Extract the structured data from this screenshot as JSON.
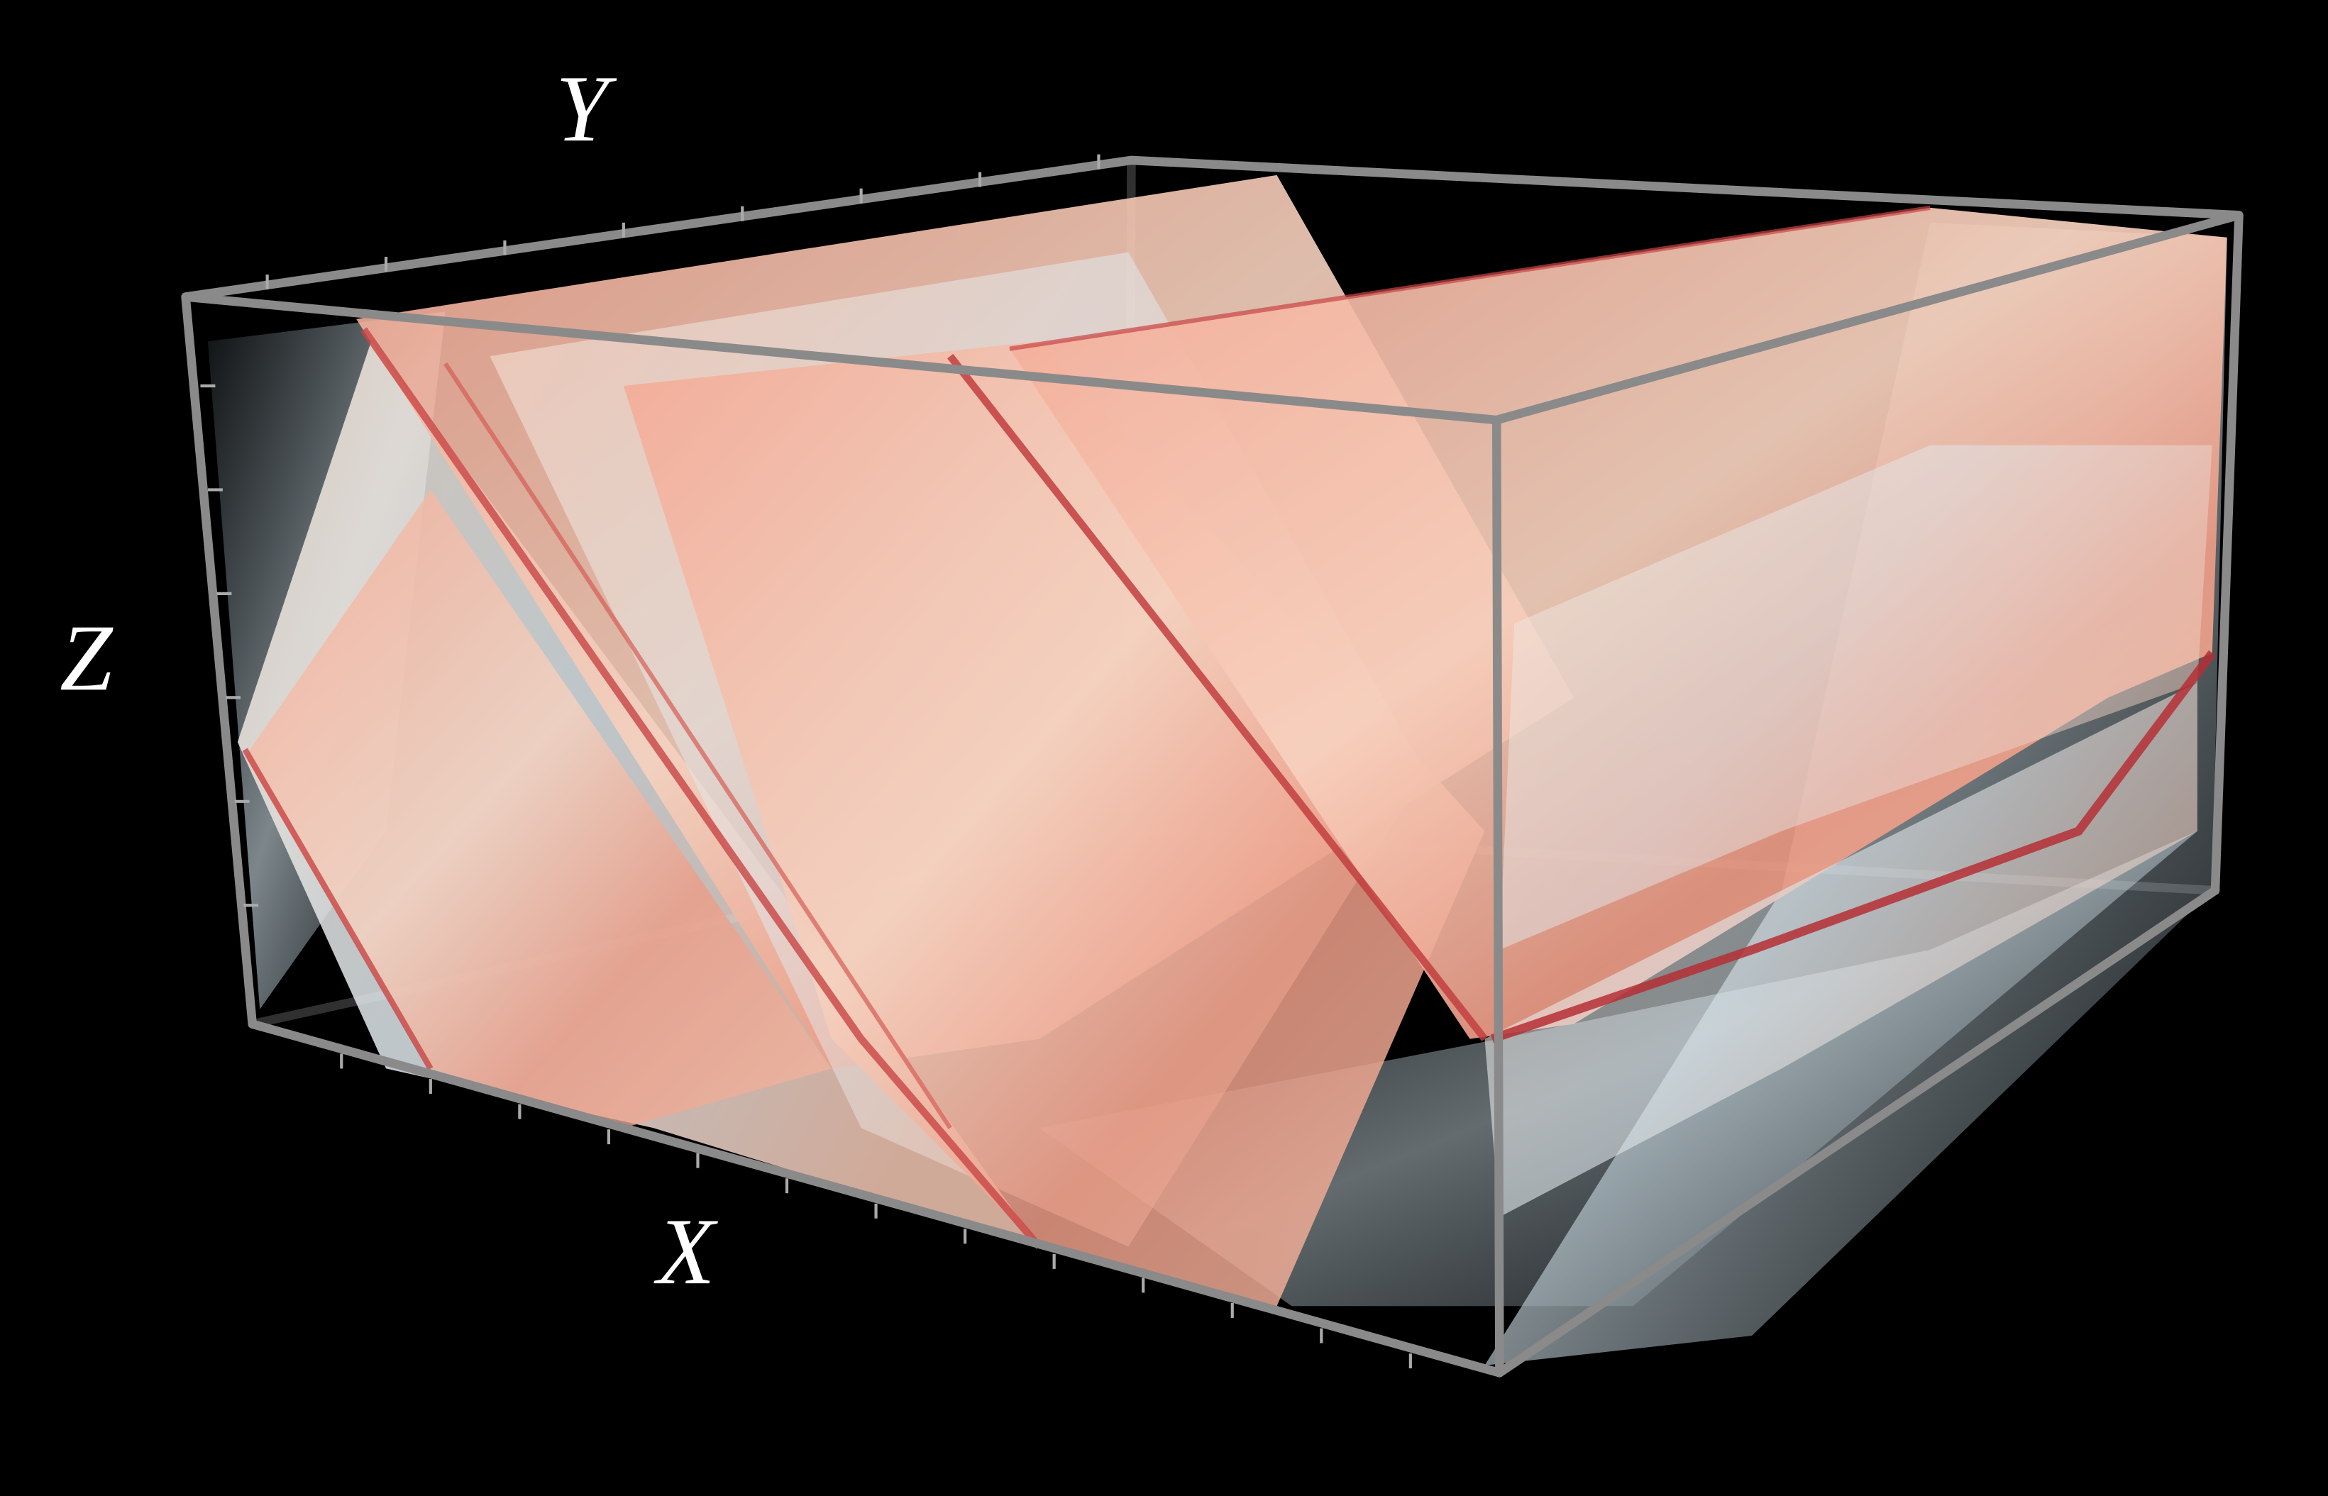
{
  "axes": {
    "x_label": "X",
    "y_label": "Y",
    "z_label": "Z"
  }
}
